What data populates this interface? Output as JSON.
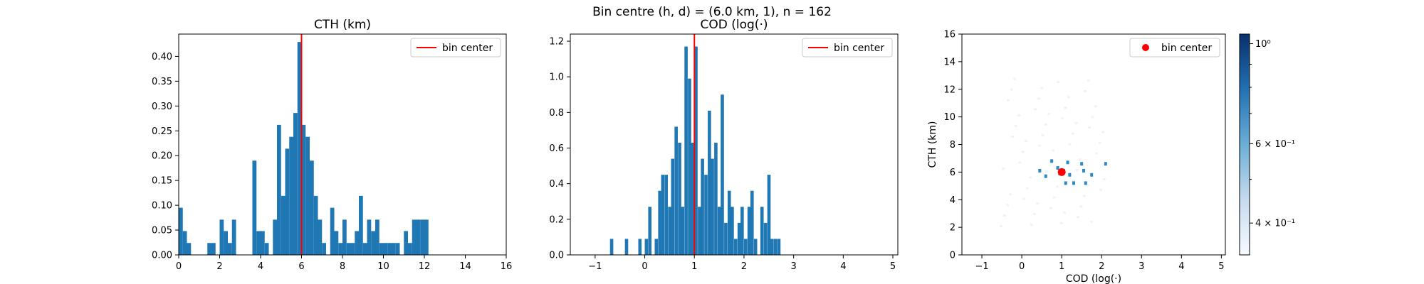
{
  "figure": {
    "suptitle": "Bin centre (h, d) = (6.0 km, 1), n = 162"
  },
  "colors": {
    "bar": "#1f77b4",
    "marker": "#ff0000",
    "axis": "#000000"
  },
  "chart_data": [
    {
      "type": "bar",
      "title": "CTH (km)",
      "xlabel": "",
      "ylabel": "",
      "xlim": [
        0,
        16
      ],
      "ylim": [
        0,
        0.445
      ],
      "xticks": [
        "0",
        "2",
        "4",
        "6",
        "8",
        "10",
        "12",
        "14",
        "16"
      ],
      "yticks": [
        "0.00",
        "0.05",
        "0.10",
        "0.15",
        "0.20",
        "0.25",
        "0.30",
        "0.35",
        "0.40"
      ],
      "bin_width": 0.2,
      "bins": [
        [
          0.0,
          0.095
        ],
        [
          0.2,
          0.048
        ],
        [
          0.4,
          0.024
        ],
        [
          1.4,
          0.024
        ],
        [
          1.6,
          0.024
        ],
        [
          2.0,
          0.071
        ],
        [
          2.2,
          0.048
        ],
        [
          2.4,
          0.024
        ],
        [
          2.6,
          0.071
        ],
        [
          3.6,
          0.19
        ],
        [
          3.8,
          0.048
        ],
        [
          4.0,
          0.048
        ],
        [
          4.2,
          0.024
        ],
        [
          4.6,
          0.071
        ],
        [
          4.8,
          0.262
        ],
        [
          5.0,
          0.119
        ],
        [
          5.2,
          0.214
        ],
        [
          5.4,
          0.238
        ],
        [
          5.6,
          0.286
        ],
        [
          5.8,
          0.429
        ],
        [
          6.0,
          0.262
        ],
        [
          6.2,
          0.238
        ],
        [
          6.4,
          0.19
        ],
        [
          6.6,
          0.119
        ],
        [
          6.8,
          0.071
        ],
        [
          7.0,
          0.024
        ],
        [
          7.4,
          0.095
        ],
        [
          7.6,
          0.048
        ],
        [
          7.8,
          0.024
        ],
        [
          8.0,
          0.071
        ],
        [
          8.2,
          0.024
        ],
        [
          8.4,
          0.024
        ],
        [
          8.6,
          0.048
        ],
        [
          8.8,
          0.119
        ],
        [
          9.0,
          0.024
        ],
        [
          9.2,
          0.071
        ],
        [
          9.4,
          0.048
        ],
        [
          9.6,
          0.071
        ],
        [
          9.8,
          0.024
        ],
        [
          10.0,
          0.024
        ],
        [
          10.2,
          0.024
        ],
        [
          10.4,
          0.024
        ],
        [
          10.6,
          0.024
        ],
        [
          11.0,
          0.048
        ],
        [
          11.2,
          0.024
        ],
        [
          11.4,
          0.071
        ],
        [
          11.6,
          0.071
        ],
        [
          11.8,
          0.071
        ],
        [
          12.0,
          0.071
        ]
      ],
      "marker_line": {
        "value": 6.0,
        "label": "bin center"
      },
      "legend": {
        "entries": [
          "bin center"
        ],
        "placement": "upper right"
      },
      "grid": false
    },
    {
      "type": "bar",
      "title": "COD (log(·)",
      "xlabel": "",
      "ylabel": "",
      "xlim": [
        -1.5,
        5.1
      ],
      "ylim": [
        0,
        1.24
      ],
      "xticks": [
        "−1",
        "0",
        "1",
        "2",
        "3",
        "4",
        "5"
      ],
      "yticks": [
        "0.0",
        "0.2",
        "0.4",
        "0.6",
        "0.8",
        "1.0",
        "1.2"
      ],
      "bin_width": 0.066,
      "bins": [
        [
          -0.7,
          0.09
        ],
        [
          -0.4,
          0.09
        ],
        [
          -0.13,
          0.09
        ],
        [
          0.0,
          0.09
        ],
        [
          0.07,
          0.27
        ],
        [
          0.2,
          0.09
        ],
        [
          0.27,
          0.36
        ],
        [
          0.33,
          0.45
        ],
        [
          0.4,
          0.45
        ],
        [
          0.47,
          0.27
        ],
        [
          0.53,
          0.54
        ],
        [
          0.6,
          0.72
        ],
        [
          0.67,
          0.63
        ],
        [
          0.73,
          0.27
        ],
        [
          0.8,
          1.17
        ],
        [
          0.87,
          0.99
        ],
        [
          0.93,
          0.63
        ],
        [
          1.0,
          1.17
        ],
        [
          1.07,
          0.27
        ],
        [
          1.13,
          0.54
        ],
        [
          1.2,
          0.45
        ],
        [
          1.27,
          0.81
        ],
        [
          1.33,
          0.54
        ],
        [
          1.4,
          0.63
        ],
        [
          1.47,
          0.27
        ],
        [
          1.53,
          0.9
        ],
        [
          1.6,
          0.18
        ],
        [
          1.67,
          0.36
        ],
        [
          1.73,
          0.27
        ],
        [
          1.8,
          0.09
        ],
        [
          1.87,
          0.18
        ],
        [
          1.93,
          0.27
        ],
        [
          2.0,
          0.09
        ],
        [
          2.07,
          0.27
        ],
        [
          2.13,
          0.36
        ],
        [
          2.2,
          0.09
        ],
        [
          2.33,
          0.27
        ],
        [
          2.4,
          0.18
        ],
        [
          2.47,
          0.45
        ],
        [
          2.53,
          0.09
        ],
        [
          2.6,
          0.09
        ],
        [
          2.67,
          0.09
        ]
      ],
      "marker_line": {
        "value": 1.0,
        "label": "bin center"
      },
      "legend": {
        "entries": [
          "bin center"
        ],
        "placement": "upper right"
      },
      "grid": false
    },
    {
      "type": "heatmap",
      "title": "",
      "xlabel": "COD (log(·)",
      "ylabel": "CTH (km)",
      "xlim": [
        -1.5,
        5.1
      ],
      "ylim": [
        0,
        16
      ],
      "xticks": [
        "−1",
        "0",
        "1",
        "2",
        "3",
        "4",
        "5"
      ],
      "yticks": [
        "0",
        "2",
        "4",
        "6",
        "8",
        "10",
        "12",
        "14",
        "16"
      ],
      "cells_visible": [
        [
          0.45,
          6.1
        ],
        [
          0.6,
          5.7
        ],
        [
          0.75,
          6.8
        ],
        [
          0.9,
          6.3
        ],
        [
          0.95,
          5.9
        ],
        [
          1.05,
          6.1
        ],
        [
          1.1,
          5.2
        ],
        [
          1.15,
          6.7
        ],
        [
          1.2,
          5.8
        ],
        [
          1.3,
          5.2
        ],
        [
          1.5,
          6.6
        ],
        [
          1.55,
          6.1
        ],
        [
          1.6,
          5.2
        ],
        [
          1.75,
          5.8
        ],
        [
          2.1,
          6.6
        ]
      ],
      "point": {
        "x": 1.0,
        "y": 6.0,
        "label": "bin center"
      },
      "legend": {
        "entries": [
          "bin center"
        ],
        "placement": "upper right"
      },
      "colorbar": {
        "scale": "log",
        "ticks": [
          "4 × 10⁻¹",
          "6 × 10⁻¹",
          "10⁰"
        ],
        "colormap": "Blues"
      }
    }
  ]
}
